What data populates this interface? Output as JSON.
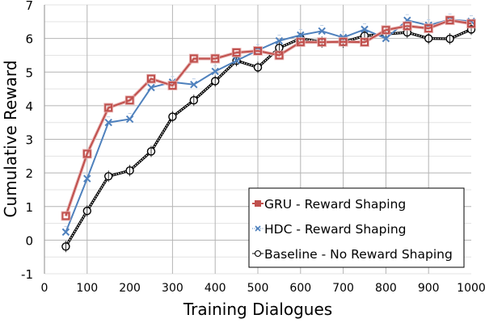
{
  "chart_data": {
    "type": "line",
    "title": "",
    "xlabel": "Training Dialogues",
    "ylabel": "Cumulative Reward",
    "xlim": [
      0,
      1000
    ],
    "ylim": [
      -1,
      7
    ],
    "x_ticks": [
      0,
      100,
      200,
      300,
      400,
      500,
      600,
      700,
      800,
      900,
      1000
    ],
    "y_ticks": [
      -1,
      0,
      1,
      2,
      3,
      4,
      5,
      6,
      7
    ],
    "grid": true,
    "legend_position": "lower right",
    "x": [
      50,
      100,
      150,
      200,
      250,
      300,
      350,
      400,
      450,
      500,
      550,
      600,
      650,
      700,
      750,
      800,
      850,
      900,
      950,
      1000
    ],
    "series": [
      {
        "name": "GRU - Reward Shaping",
        "color": "#C0504D",
        "marker": "square",
        "values": [
          0.72,
          2.57,
          3.94,
          4.16,
          4.8,
          4.6,
          5.4,
          5.4,
          5.58,
          5.63,
          5.5,
          5.89,
          5.89,
          5.9,
          5.89,
          6.25,
          6.37,
          6.3,
          6.54,
          6.44
        ]
      },
      {
        "name": "HDC - Reward Shaping",
        "color": "#4F81BD",
        "marker": "x",
        "values": [
          0.24,
          1.83,
          3.5,
          3.6,
          4.54,
          4.7,
          4.63,
          5.02,
          5.34,
          5.65,
          5.93,
          6.1,
          6.22,
          6.03,
          6.27,
          6.0,
          6.54,
          6.39,
          6.56,
          6.51
        ]
      },
      {
        "name": "Baseline - No Reward Shaping",
        "color": "#000000",
        "marker": "circle",
        "values": [
          -0.19,
          0.87,
          1.9,
          2.07,
          2.64,
          3.67,
          4.16,
          4.73,
          5.34,
          5.14,
          5.72,
          6.0,
          5.89,
          5.89,
          6.08,
          6.13,
          6.18,
          6.0,
          5.99,
          6.27
        ]
      }
    ]
  },
  "labels": {
    "xlabel": "Training Dialogues",
    "ylabel": "Cumulative Reward"
  },
  "colors": {
    "gru": "#C0504D",
    "hdc": "#4F81BD",
    "baseline": "#000000",
    "grid_major": "#B4B4B4",
    "grid_minor": "#E3E3E3"
  }
}
